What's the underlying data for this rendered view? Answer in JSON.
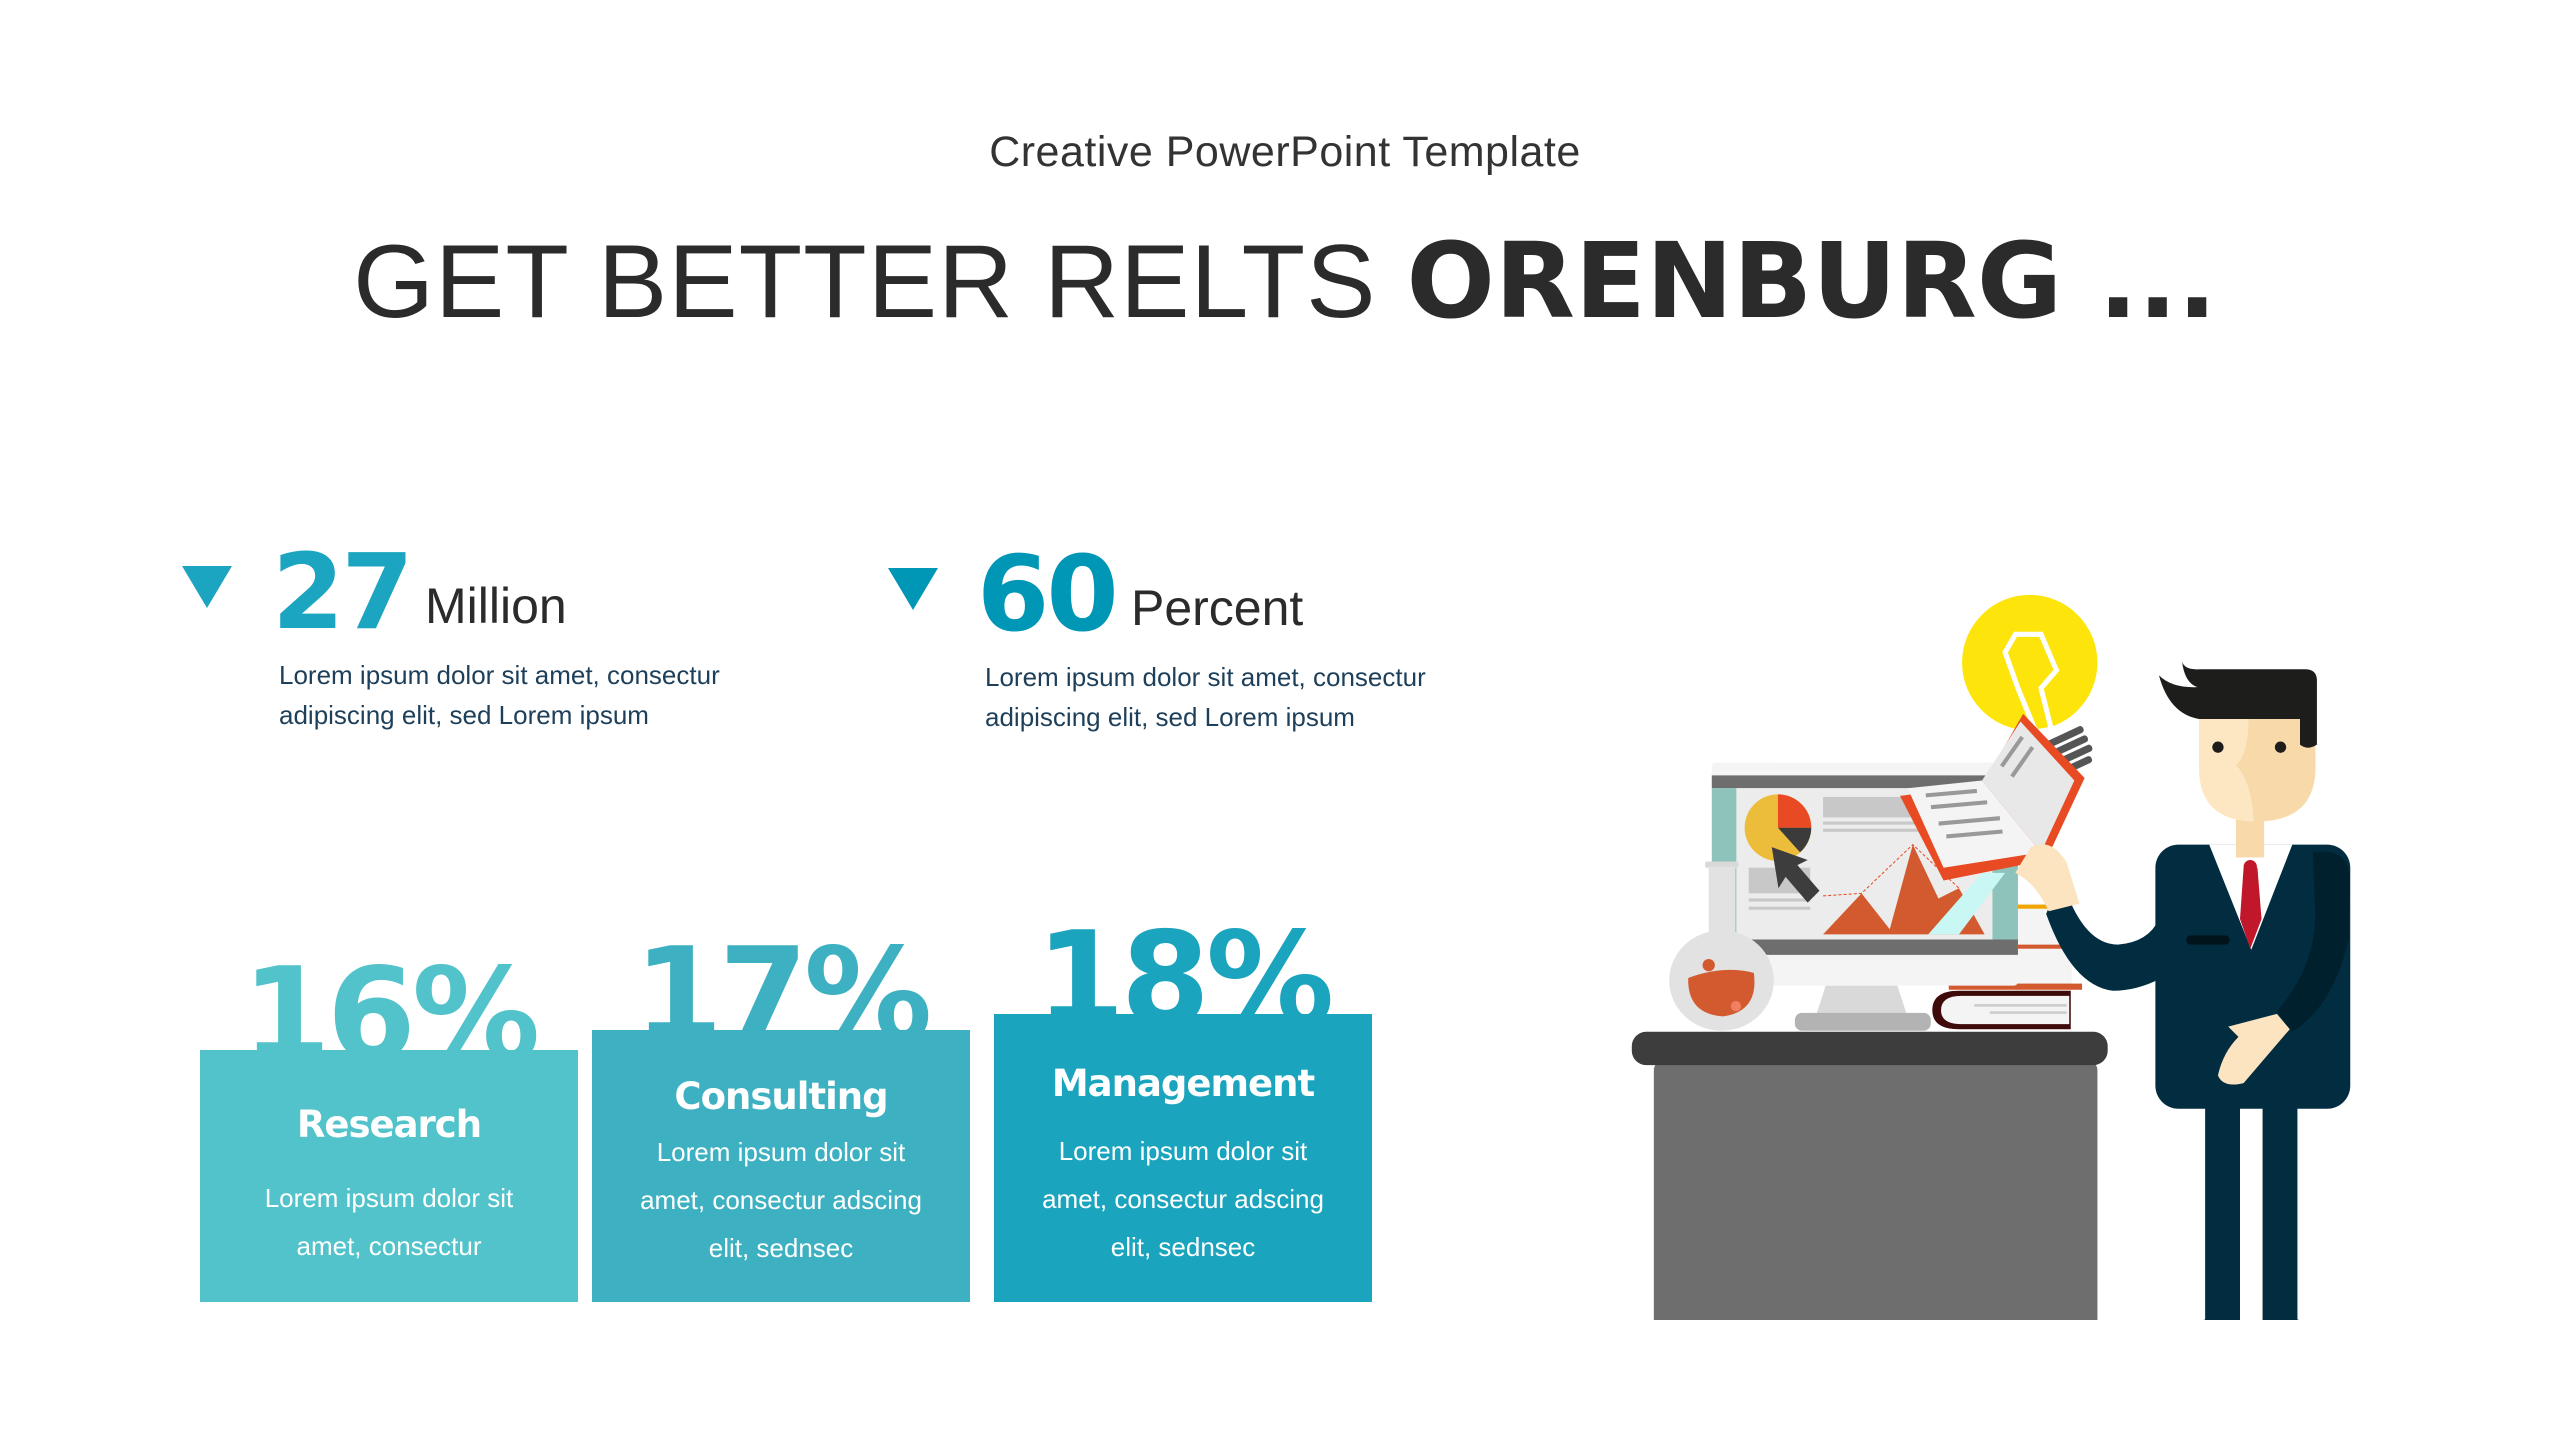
{
  "header": {
    "subtitle": "Creative PowerPoint Template",
    "title_light": "GET BETTER RELTS ",
    "title_bold": "ORENBURG ..."
  },
  "stats": [
    {
      "value": "27",
      "unit": "Million",
      "line1": "Lorem ipsum dolor sit amet, consectur",
      "line2": "adipiscing elit, sed Lorem ipsum",
      "color": "#1ca5c0",
      "icon": "triangle-down-icon"
    },
    {
      "value": "60",
      "unit": "Percent",
      "line1": "Lorem ipsum dolor sit amet, consectur",
      "line2": "adipiscing elit, sed Lorem ipsum",
      "color": "#0097b6",
      "icon": "triangle-down-icon"
    }
  ],
  "cards": [
    {
      "percent": "16%",
      "title": "Research",
      "lines": [
        "Lorem ipsum dolor sit",
        "amet, consectur"
      ],
      "color": "#52c3cb"
    },
    {
      "percent": "17%",
      "title": "Consulting",
      "lines": [
        "Lorem ipsum dolor sit",
        "amet, consectur adscing",
        "elit, sednsec"
      ],
      "color": "#3db1c1"
    },
    {
      "percent": "18%",
      "title": "Management",
      "lines": [
        "Lorem ipsum dolor sit",
        "amet, consectur adscing",
        "elit, sednsec"
      ],
      "color": "#1ba4bd"
    }
  ],
  "illustration": {
    "name": "businessman-with-lightbulb-at-desk"
  }
}
